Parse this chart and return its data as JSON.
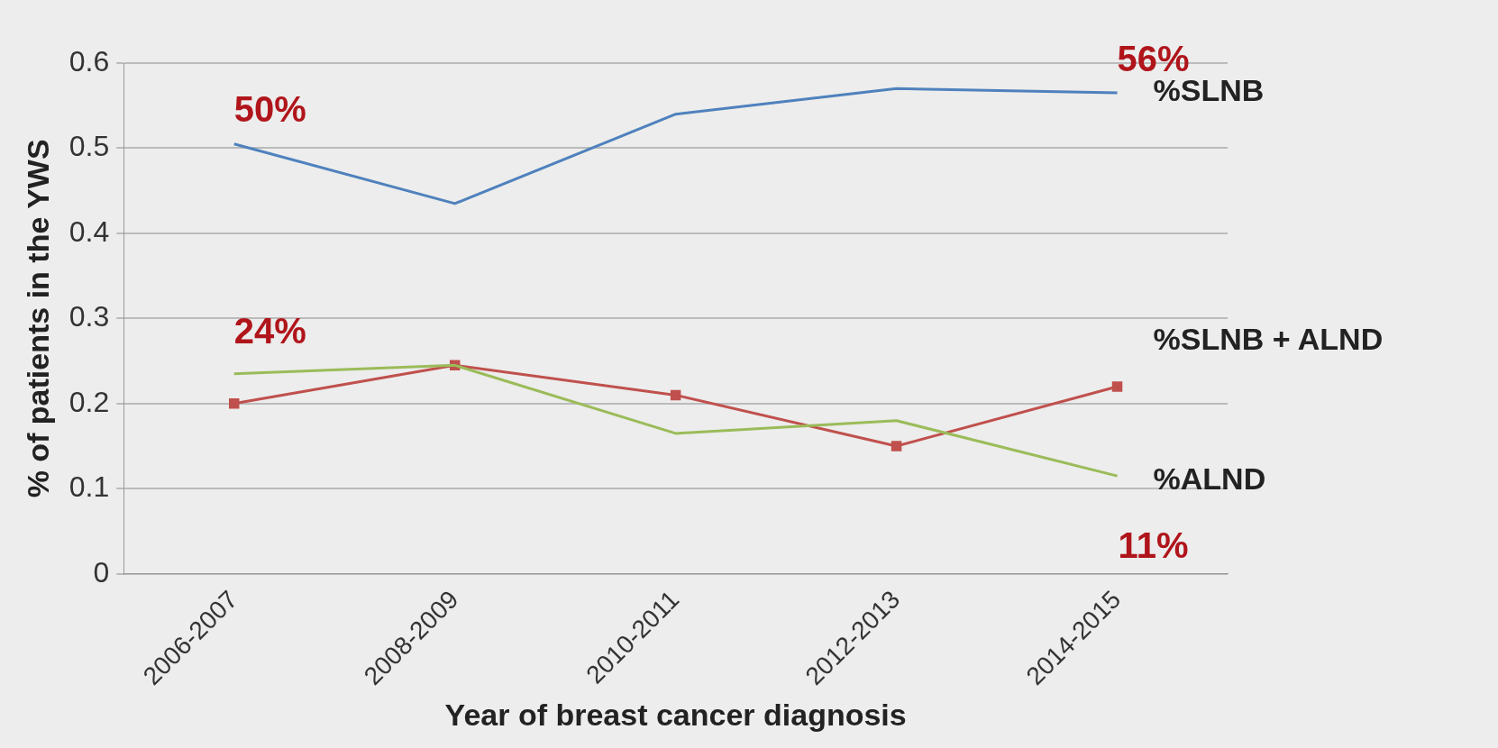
{
  "chart_data": {
    "type": "line",
    "xlabel": "Year of breast cancer diagnosis",
    "ylabel": "% of patients in the YWS",
    "categories": [
      "2006-2007",
      "2008-2009",
      "2010-2011",
      "2012-2013",
      "2014-2015"
    ],
    "series": [
      {
        "name": "%SLNB",
        "color": "#4f81bd",
        "marker": "none",
        "values": [
          0.505,
          0.435,
          0.54,
          0.57,
          0.565
        ]
      },
      {
        "name": "%SLNB + ALND",
        "color": "#c0504d",
        "marker": "square",
        "values": [
          0.2,
          0.245,
          0.21,
          0.15,
          0.22
        ]
      },
      {
        "name": "%ALND",
        "color": "#9bbb59",
        "marker": "none",
        "values": [
          0.235,
          0.245,
          0.165,
          0.18,
          0.115
        ]
      }
    ],
    "ylim": [
      0,
      0.6
    ],
    "yticks": [
      0,
      0.1,
      0.2,
      0.3,
      0.4,
      0.5,
      0.6
    ],
    "grid": "y",
    "legend": false,
    "line_style": "solid",
    "annotations": [
      {
        "text": "50%",
        "x": "2006-2007",
        "y": 0.5
      },
      {
        "text": "24%",
        "x": "2006-2007",
        "y": 0.24
      },
      {
        "text": "56%",
        "x": "2014-2015",
        "y": 0.56
      },
      {
        "text": "11%",
        "x": "2014-2015",
        "y": 0.11
      }
    ]
  }
}
